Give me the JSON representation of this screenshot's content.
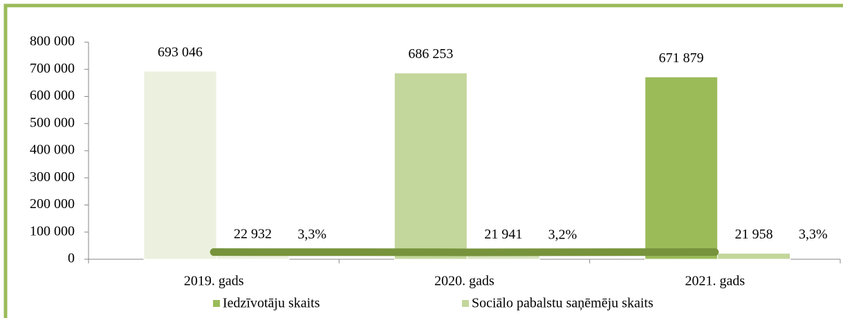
{
  "chart_data": {
    "type": "bar",
    "categories": [
      "2019. gads",
      "2020. gads",
      "2021. gads"
    ],
    "series": [
      {
        "name": "Iedzīvotāju skaits",
        "color": "#9bbb59",
        "point_colors": [
          "#ebf1de",
          "#c3d69b",
          "#9bbb59"
        ],
        "values": [
          693046,
          686253,
          671879
        ],
        "value_labels": [
          "693 046",
          "686 253",
          "671 879"
        ]
      },
      {
        "name": "Sociālo pabalstu saņēmēju skaits",
        "color": "#c3d69b",
        "point_colors": [
          "#ebf1de",
          "#d7e4bd",
          "#c3d69b"
        ],
        "values": [
          22932,
          21941,
          21958
        ],
        "value_labels": [
          "22 932",
          "21 941",
          "21 958"
        ]
      },
      {
        "type": "line",
        "axis": "y2",
        "color": "#77933c",
        "values": [
          3.3,
          3.2,
          3.3
        ],
        "value_labels": [
          "3,3%",
          "3,2%",
          "3,3%"
        ]
      }
    ],
    "ylim": [
      0,
      800000
    ],
    "yticks": [
      0,
      {
        "value": 100000,
        "label": "100 000"
      },
      {
        "value": 200000,
        "label": "200 000"
      },
      {
        "value": 300000,
        "label": "300 000"
      },
      {
        "value": 400000,
        "label": "400 000"
      },
      {
        "value": 500000,
        "label": "500 000"
      },
      {
        "value": 600000,
        "label": "600 000"
      },
      {
        "value": 700000,
        "label": "700 000"
      },
      {
        "value": 800000,
        "label": "800 000"
      }
    ],
    "y2lim": [
      0,
      100
    ],
    "legend": "bottom"
  }
}
